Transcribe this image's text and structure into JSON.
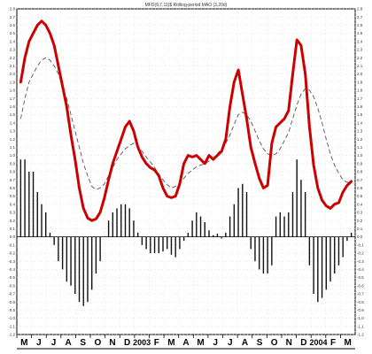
{
  "chart_data": {
    "type": "line",
    "title": "MFD(9,7,11)$ Rolling-period MAO (3,20d)",
    "ylim": [
      -1.2,
      2.8
    ],
    "y_ticks": [
      "2.8",
      "2.7",
      "2.6",
      "2.5",
      "2.4",
      "2.3",
      "2.2",
      "2.1",
      "2.0",
      "1.9",
      "1.8",
      "1.7",
      "1.6",
      "1.5",
      "1.4",
      "1.3",
      "1.2",
      "1.1",
      "1.0",
      "0.9",
      "0.8",
      "0.7",
      "0.6",
      "0.5",
      "0.4",
      "0.3",
      "0.2",
      "0.1",
      "0.0",
      "-0.1",
      "-0.2",
      "-0.3",
      "-0.4",
      "-0.5",
      "-0.6",
      "-0.7",
      "-0.8",
      "-0.9",
      "-1.0",
      "-1.1",
      "-1.2"
    ],
    "x_labels": [
      "M",
      "J",
      "J",
      "A",
      "S",
      "O",
      "N",
      "D",
      "2003",
      "F",
      "M",
      "A",
      "M",
      "J",
      "J",
      "A",
      "S",
      "O",
      "N",
      "D",
      "2004",
      "F",
      "M"
    ],
    "grid": true,
    "n_bars": 80,
    "series": [
      {
        "values": [
          1.9,
          2.2,
          2.4,
          2.5,
          2.6,
          2.65,
          2.6,
          2.5,
          2.35,
          2.1,
          1.85,
          1.6,
          1.25,
          0.95,
          0.6,
          0.35,
          0.23,
          0.2,
          0.22,
          0.3,
          0.48,
          0.7,
          0.9,
          1.05,
          1.2,
          1.35,
          1.42,
          1.3,
          1.1,
          0.98,
          0.9,
          0.85,
          0.82,
          0.75,
          0.6,
          0.5,
          0.48,
          0.5,
          0.65,
          0.9,
          1.0,
          0.98,
          1.0,
          0.95,
          0.9,
          1.0,
          0.95,
          1.0,
          1.05,
          1.2,
          1.6,
          1.9,
          2.05,
          1.75,
          1.45,
          1.1,
          0.9,
          0.72,
          0.6,
          0.63,
          1.15,
          1.35,
          1.4,
          1.45,
          1.55,
          2.0,
          2.42,
          2.35,
          2.0,
          1.35,
          0.88,
          0.6,
          0.45,
          0.38,
          0.35,
          0.4,
          0.42,
          0.55,
          0.63,
          0.68
        ],
        "color": "#cc0000"
      },
      {
        "values": [
          1.45,
          1.7,
          1.9,
          2.0,
          2.1,
          2.17,
          2.2,
          2.17,
          2.1,
          2.0,
          1.85,
          1.7,
          1.5,
          1.3,
          1.1,
          0.9,
          0.75,
          0.62,
          0.58,
          0.6,
          0.65,
          0.75,
          0.85,
          0.95,
          1.02,
          1.08,
          1.12,
          1.15,
          1.12,
          1.05,
          0.98,
          0.92,
          0.85,
          0.77,
          0.7,
          0.64,
          0.6,
          0.62,
          0.66,
          0.72,
          0.78,
          0.82,
          0.86,
          0.88,
          0.9,
          0.93,
          0.97,
          1.02,
          1.08,
          1.15,
          1.25,
          1.38,
          1.5,
          1.53,
          1.5,
          1.42,
          1.3,
          1.18,
          1.08,
          1.02,
          1.0,
          1.02,
          1.08,
          1.18,
          1.28,
          1.45,
          1.62,
          1.75,
          1.82,
          1.8,
          1.72,
          1.58,
          1.4,
          1.2,
          1.02,
          0.88,
          0.78,
          0.7,
          0.67,
          0.67
        ],
        "color": "#555555"
      },
      {
        "values": [
          0.95,
          0.95,
          0.8,
          0.8,
          0.55,
          0.4,
          0.3,
          0.05,
          -0.1,
          -0.3,
          -0.4,
          -0.55,
          -0.6,
          -0.7,
          -0.8,
          -0.85,
          -0.8,
          -0.65,
          -0.45,
          -0.3,
          0.0,
          0.2,
          0.3,
          0.35,
          0.4,
          0.4,
          0.35,
          0.2,
          0.05,
          -0.1,
          -0.15,
          -0.2,
          -0.2,
          -0.2,
          -0.18,
          -0.15,
          -0.22,
          -0.25,
          -0.15,
          -0.05,
          0.05,
          0.2,
          0.3,
          0.25,
          0.18,
          0.08,
          0.02,
          0.04,
          -0.02,
          0.05,
          0.25,
          0.4,
          0.6,
          0.65,
          0.55,
          -0.15,
          -0.3,
          -0.4,
          -0.45,
          -0.45,
          -0.35,
          0.25,
          0.3,
          0.25,
          0.3,
          0.55,
          0.95,
          0.7,
          0.55,
          -0.35,
          -0.7,
          -0.8,
          -0.75,
          -0.65,
          -0.55,
          -0.45,
          -0.35,
          -0.25,
          -0.05,
          0.05
        ],
        "color": "#111111"
      }
    ]
  }
}
